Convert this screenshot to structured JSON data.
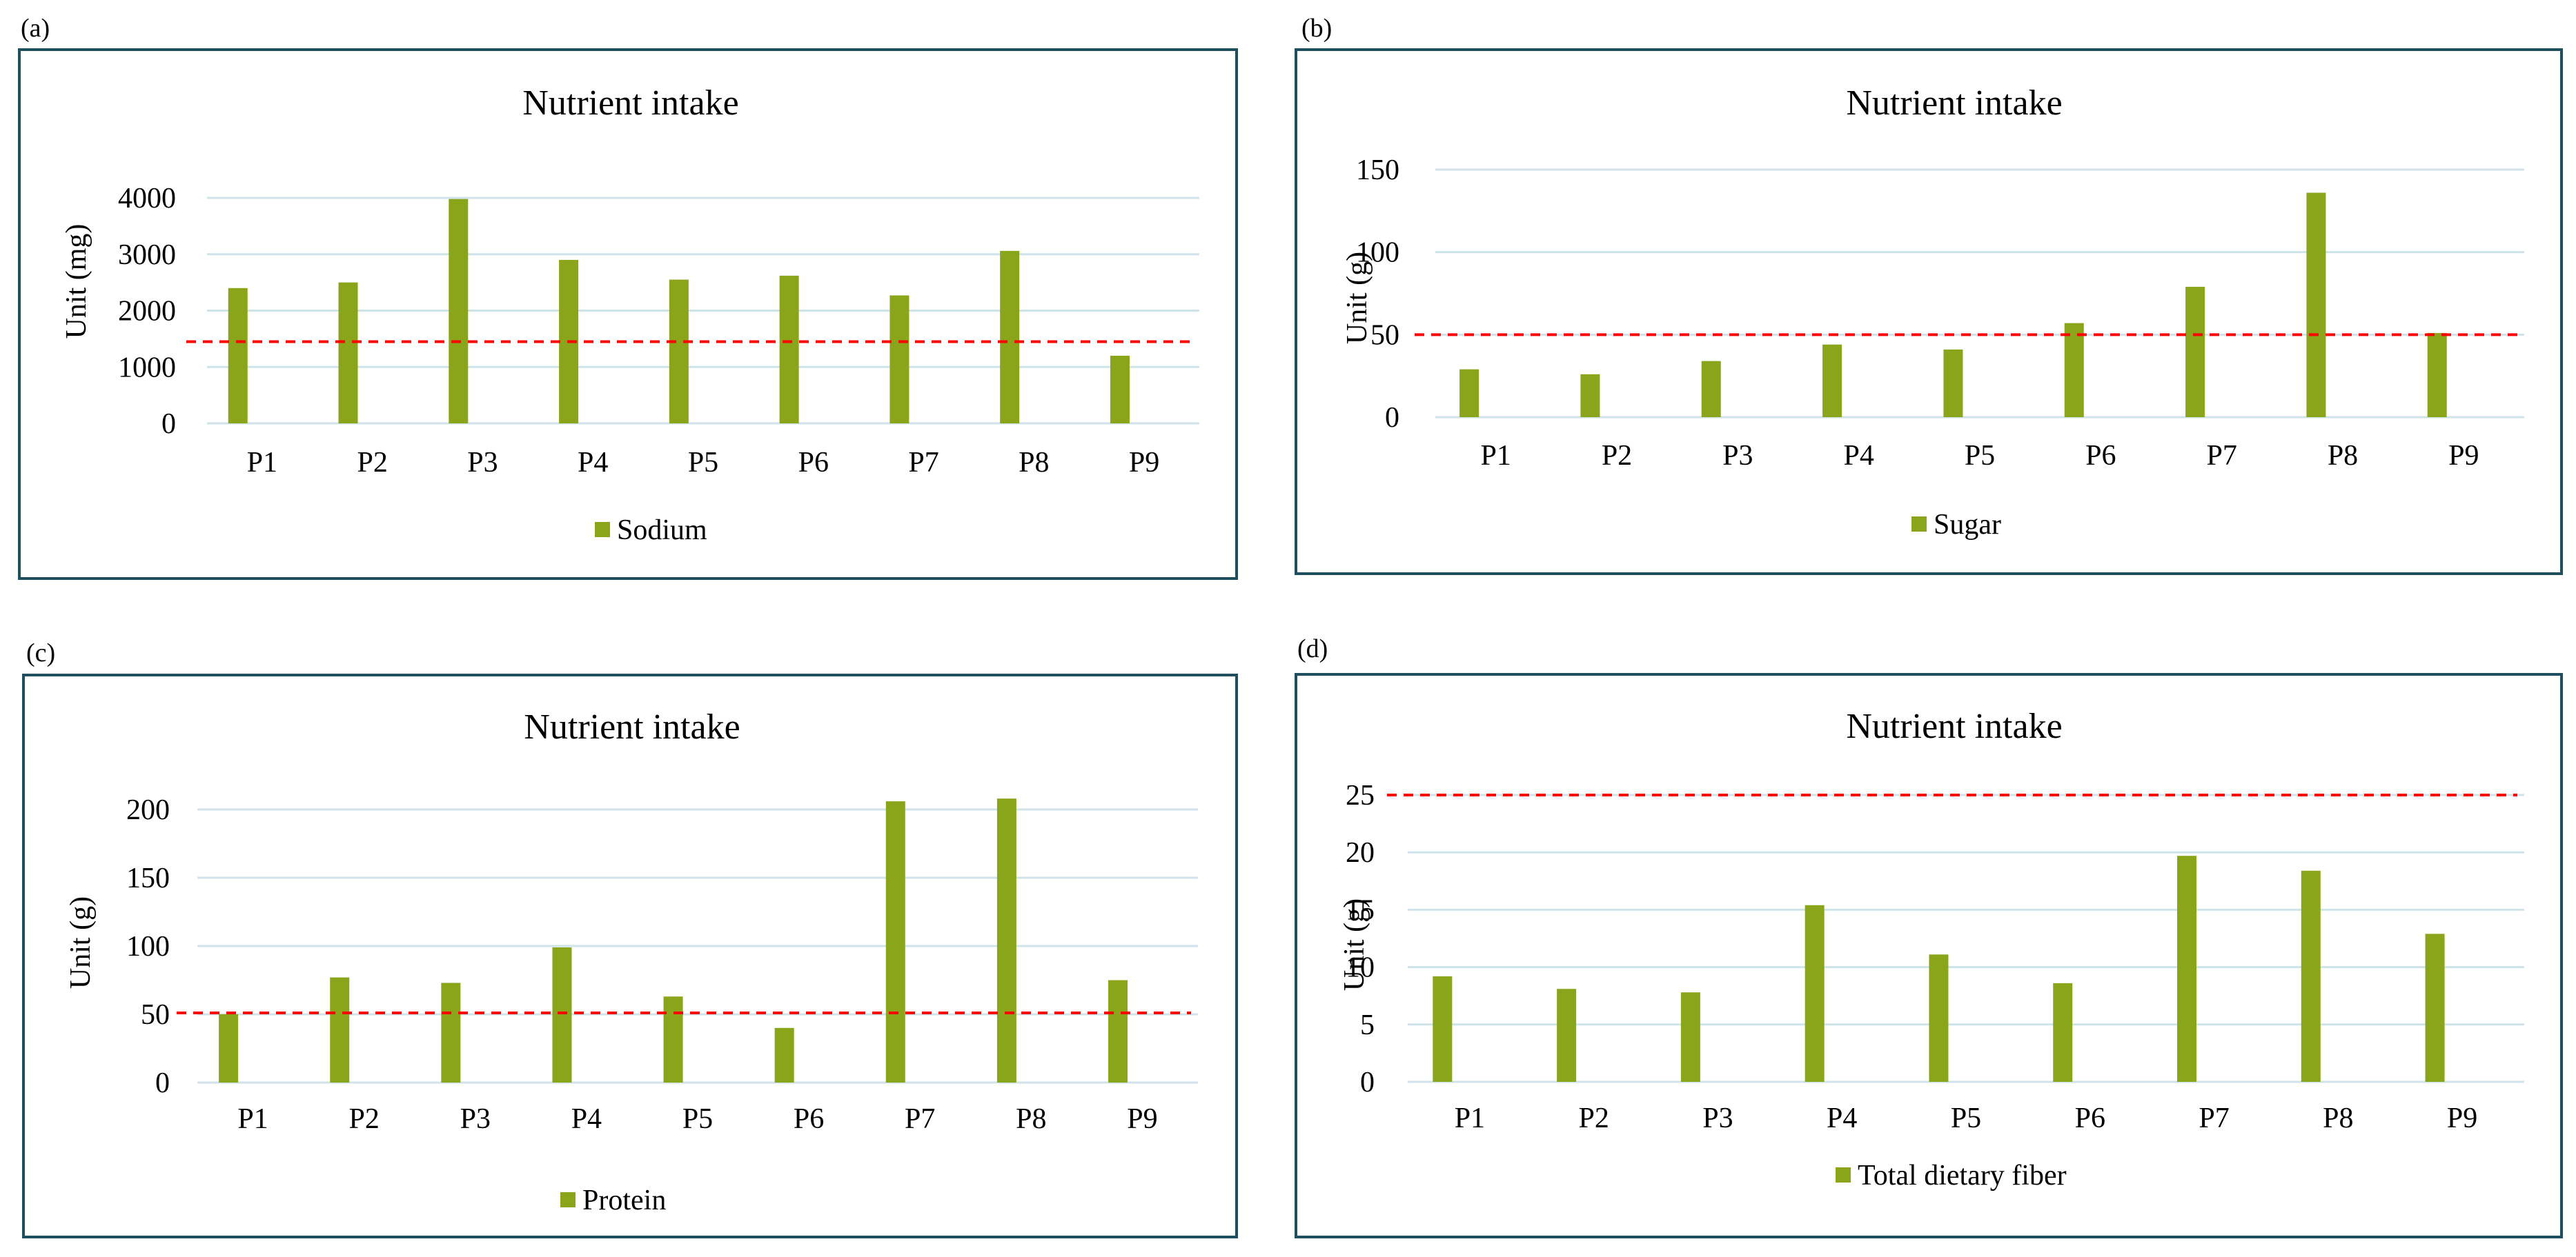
{
  "colors": {
    "bar": "#8aa51a",
    "threshold": "#ff0000",
    "gridline": "#cfe3ea",
    "frame": "#1f4e5f"
  },
  "chart_data": [
    {
      "panel": "(a)",
      "type": "bar",
      "title": "Nutrient intake",
      "ylabel": "Unit (mg)",
      "xlabel": "",
      "categories": [
        "P1",
        "P2",
        "P3",
        "P4",
        "P5",
        "P6",
        "P7",
        "P8",
        "P9"
      ],
      "series": [
        {
          "name": "Sodium",
          "values": [
            2400,
            2500,
            3980,
            2900,
            2550,
            2620,
            2270,
            3060,
            1200
          ]
        }
      ],
      "ylim": [
        0,
        4000
      ],
      "yticks": [
        0,
        1000,
        2000,
        3000,
        4000
      ],
      "reference_line": 1450,
      "grid": true,
      "legend_position": "bottom"
    },
    {
      "panel": "(b)",
      "type": "bar",
      "title": "Nutrient intake",
      "ylabel": "Unit (g)",
      "xlabel": "",
      "categories": [
        "P1",
        "P2",
        "P3",
        "P4",
        "P5",
        "P6",
        "P7",
        "P8",
        "P9"
      ],
      "series": [
        {
          "name": "Sugar",
          "values": [
            29,
            26,
            34,
            44,
            41,
            57,
            79,
            136,
            51
          ]
        }
      ],
      "ylim": [
        0,
        150
      ],
      "yticks": [
        0,
        50,
        100,
        150
      ],
      "reference_line": 50,
      "grid": true,
      "legend_position": "bottom"
    },
    {
      "panel": "(c)",
      "type": "bar",
      "title": "Nutrient intake",
      "ylabel": "Unit (g)",
      "xlabel": "",
      "categories": [
        "P1",
        "P2",
        "P3",
        "P4",
        "P5",
        "P6",
        "P7",
        "P8",
        "P9"
      ],
      "series": [
        {
          "name": "Protein",
          "values": [
            50,
            77,
            73,
            99,
            63,
            40,
            206,
            208,
            75
          ]
        }
      ],
      "ylim": [
        0,
        200
      ],
      "yticks": [
        0,
        50,
        100,
        150,
        200
      ],
      "reference_line": 51,
      "grid": true,
      "legend_position": "bottom"
    },
    {
      "panel": "(d)",
      "type": "bar",
      "title": "Nutrient intake",
      "ylabel": "Unit (g)",
      "xlabel": "",
      "categories": [
        "P1",
        "P2",
        "P3",
        "P4",
        "P5",
        "P6",
        "P7",
        "P8",
        "P9"
      ],
      "series": [
        {
          "name": "Total dietary fiber",
          "values": [
            9.2,
            8.1,
            7.8,
            15.4,
            11.1,
            8.6,
            19.7,
            18.4,
            12.9
          ]
        }
      ],
      "ylim": [
        0,
        25
      ],
      "yticks": [
        0,
        5,
        10,
        15,
        20,
        25
      ],
      "reference_line": 25,
      "grid": true,
      "legend_position": "bottom"
    }
  ]
}
